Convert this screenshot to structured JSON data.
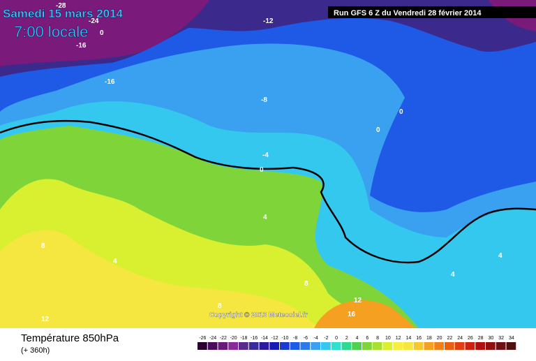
{
  "header": {
    "date": "Samedi 15 mars 2014",
    "time": "7:00 locale",
    "run": "Run GFS 6 Z du Vendredi 28 février 2014"
  },
  "copyright": "Copyright © 2013 Meteociel.fr",
  "contour_labels": [
    "-28",
    "-24",
    "0",
    "-16",
    "-16",
    "-12",
    "-8",
    "-4",
    "0",
    "4",
    "8",
    "4",
    "12",
    "8",
    "8",
    "12",
    "16",
    "0",
    "0",
    "4",
    "4"
  ],
  "legend": {
    "title": "Température 850hPa",
    "subtitle": "(+ 360h)",
    "labels": [
      "-26",
      "-24",
      "-22",
      "-20",
      "-18",
      "-16",
      "-14",
      "-12",
      "-10",
      "-8",
      "-6",
      "-4",
      "-2",
      "0",
      "2",
      "4",
      "6",
      "8",
      "10",
      "12",
      "14",
      "16",
      "18",
      "20",
      "22",
      "24",
      "26",
      "28",
      "30",
      "32",
      "34"
    ]
  }
}
